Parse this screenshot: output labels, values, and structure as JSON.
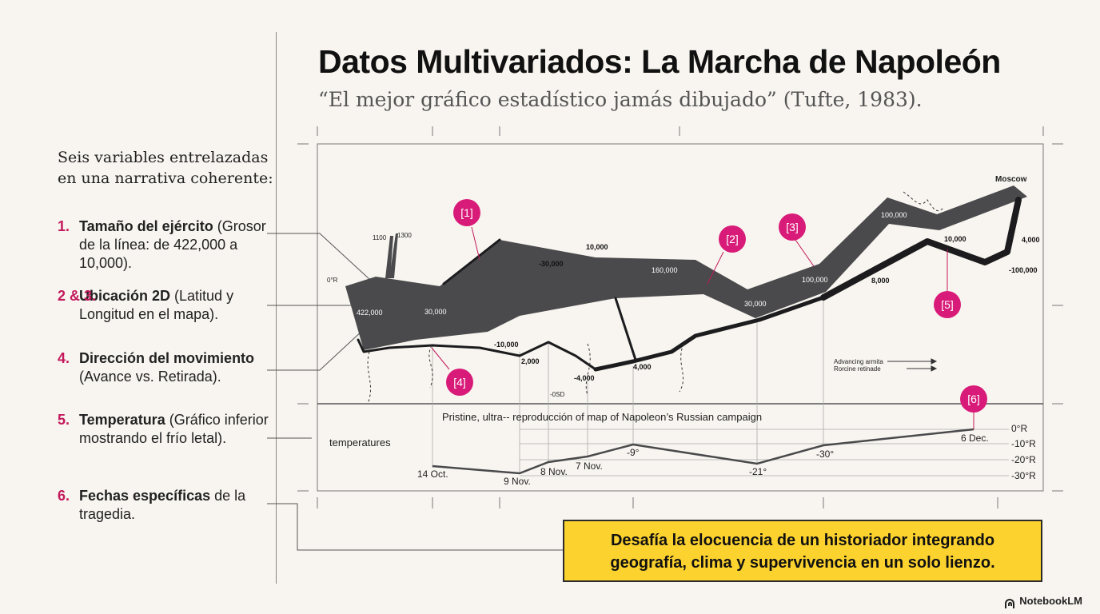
{
  "header": {
    "title": "Datos Multivariados: La Marcha de Napoleón",
    "subtitle": "“El mejor gráfico estadístico jamás dibujado” (Tufte, 1983)."
  },
  "sidebar": {
    "intro": "Seis variables entrelazadas en una narrativa coherente:",
    "items": [
      {
        "num": "1.",
        "bold": "Tamaño del ejército",
        "rest": " (Grosor de la línea: de 422,000 a 10,000)."
      },
      {
        "num": "2 & 3.",
        "bold": "Ubicación 2D",
        "rest": " (Latitud y Longitud en el mapa)."
      },
      {
        "num": "4.",
        "bold": "Dirección del movimiento",
        "rest": " (Avance vs. Retirada)."
      },
      {
        "num": "5.",
        "bold": "Temperatura",
        "rest": " (Gráfico inferior mostrando el frío letal)."
      },
      {
        "num": "6.",
        "bold": "Fechas específicas",
        "rest": " de la tragedia."
      }
    ]
  },
  "map": {
    "city": "Moscow",
    "caption": "Pristine, ultra-- reproducción of map of Napoleon’s Russian campaign",
    "temps_label": "temperatures",
    "legend": [
      "Advancing armita",
      "Rorcine retinade"
    ],
    "badges": [
      "[1]",
      "[2]",
      "[3]",
      "[4]",
      "[5]",
      "[6]"
    ],
    "advance_labels": [
      "422,000",
      "30,000",
      "160,000",
      "30,000",
      "100,000",
      "100,000"
    ],
    "retreat_labels": [
      "10,000",
      "-30,000",
      "-10,000",
      "2,000",
      "-4,000",
      "4,000",
      "8,000",
      "10,000",
      "4,000",
      "-100,000"
    ],
    "misc_labels": [
      "1100",
      "1300",
      "0°R",
      "-0SD"
    ],
    "temp_axis": [
      "0°R",
      "-10°R",
      "-20°R",
      "-30°R"
    ],
    "dates": [
      "14 Oct.",
      "9 Nov.",
      "8 Nov.",
      "7 Nov.",
      "6 Dec."
    ],
    "temp_values": [
      "-9°",
      "-21°",
      "-30°"
    ]
  },
  "callout": {
    "line1": "Desafía la elocuencia de un historiador integrando",
    "line2": "geografía, clima y supervivencia en un solo lienzo."
  },
  "brand": "NotebookLM",
  "colors": {
    "accent": "#d81b78",
    "army": "#4a4a4c",
    "retreat": "#1c1c1e",
    "highlight": "#fcd22e"
  }
}
